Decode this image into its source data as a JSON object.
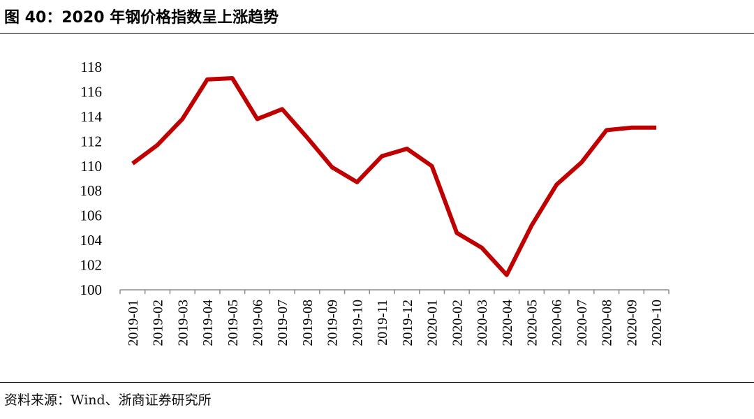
{
  "figure": {
    "title": "图 40：2020 年钢价格指数呈上涨趋势",
    "source": "资料来源：Wind、浙商证券研究所",
    "accent_color": "#C00000"
  },
  "chart_data": {
    "type": "line",
    "title": "",
    "xlabel": "",
    "ylabel": "",
    "categories": [
      "2019-01",
      "2019-02",
      "2019-03",
      "2019-04",
      "2019-05",
      "2019-06",
      "2019-07",
      "2019-08",
      "2019-09",
      "2019-10",
      "2019-11",
      "2019-12",
      "2020-01",
      "2020-02",
      "2020-03",
      "2020-04",
      "2020-05",
      "2020-06",
      "2020-07",
      "2020-08",
      "2020-09",
      "2020-10"
    ],
    "series": [
      {
        "values": [
          110.2,
          111.7,
          113.8,
          117.0,
          117.1,
          113.8,
          114.6,
          112.3,
          109.9,
          108.7,
          110.8,
          111.4,
          110.0,
          104.6,
          103.4,
          101.2,
          105.2,
          108.5,
          110.3,
          112.9,
          113.1,
          113.1
        ],
        "color": "#C00000"
      }
    ],
    "yticks": [
      100,
      102,
      104,
      106,
      108,
      110,
      112,
      114,
      116,
      118
    ],
    "ylim": [
      100,
      118
    ],
    "grid": false,
    "legend": "none"
  }
}
